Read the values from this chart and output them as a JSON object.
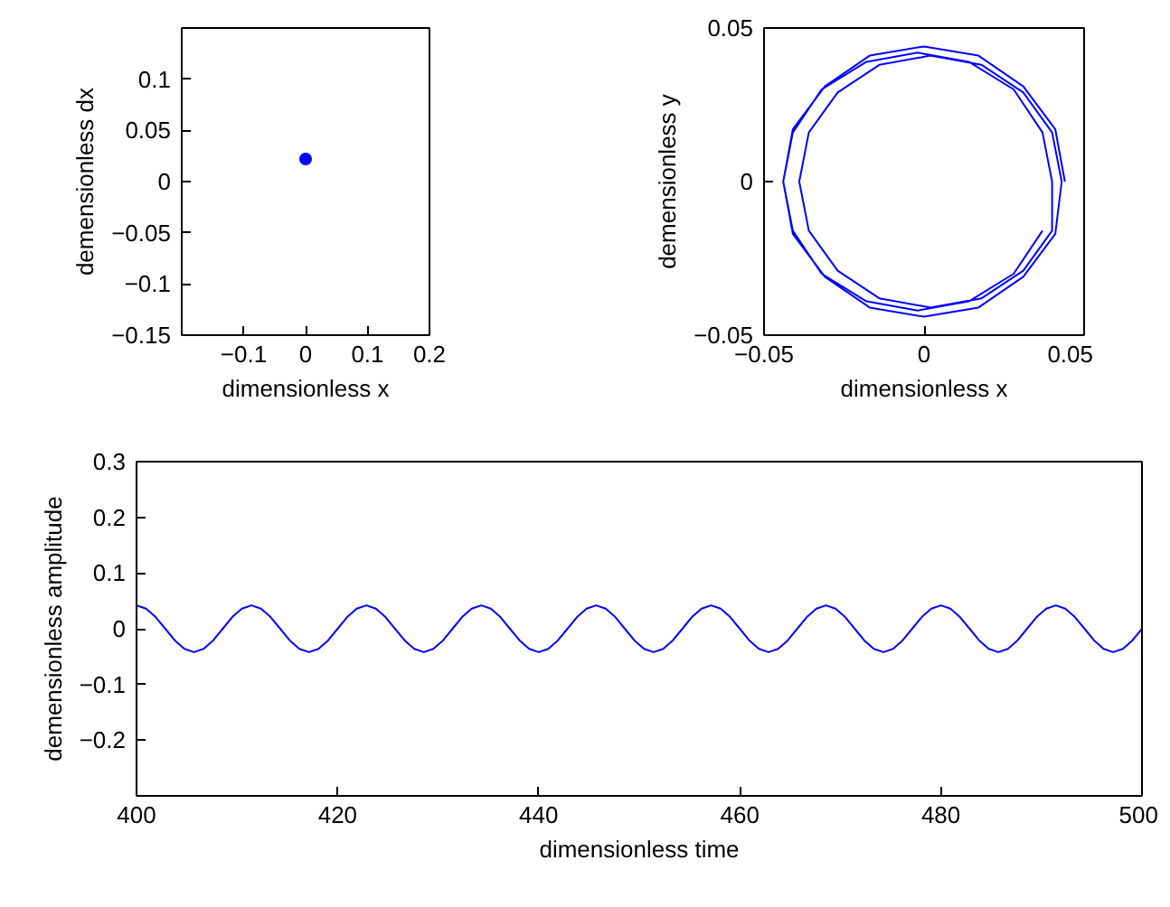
{
  "chart_data": [
    {
      "type": "scatter",
      "xlabel": "dimensionless x",
      "ylabel": "demensionless dx",
      "xlim": [
        -0.2,
        0.2
      ],
      "ylim": [
        -0.15,
        0.15
      ],
      "xticks": [
        -0.1,
        0,
        0.1,
        0.2
      ],
      "yticks": [
        -0.15,
        -0.1,
        -0.05,
        0,
        0.05,
        0.1
      ],
      "marker": "circle",
      "series": [
        {
          "color": "#0000ff",
          "x": [
            0
          ],
          "values": [
            0.022
          ]
        }
      ]
    },
    {
      "type": "line",
      "xlabel": "dimensionless x",
      "ylabel": "demensionless y",
      "xlim": [
        -0.05,
        0.05
      ],
      "ylim": [
        -0.05,
        0.05
      ],
      "xticks": [
        -0.05,
        0,
        0.05
      ],
      "yticks": [
        -0.05,
        0,
        0.05
      ],
      "series": [
        {
          "color": "#0000ff",
          "x": [
            0.044,
            0.041,
            0.031,
            0.017,
            0,
            -0.017,
            -0.031,
            -0.041,
            -0.044,
            -0.041,
            -0.031,
            -0.017,
            0,
            0.017,
            0.031,
            0.041,
            0.043,
            0.04,
            0.031,
            0.018,
            0.002,
            -0.014,
            -0.027,
            -0.036,
            -0.039,
            -0.036,
            -0.027,
            -0.014,
            0.002,
            0.018,
            0.031,
            0.04,
            0.04,
            0.037,
            0.028,
            0.014,
            -0.002,
            -0.018,
            -0.032,
            -0.041,
            -0.044,
            -0.041,
            -0.032,
            -0.018,
            -0.002,
            0.014,
            0.028,
            0.037
          ],
          "values": [
            0,
            0.017,
            0.031,
            0.041,
            0.044,
            0.041,
            0.031,
            0.017,
            0,
            -0.017,
            -0.031,
            -0.041,
            -0.044,
            -0.041,
            -0.031,
            -0.017,
            0,
            0.016,
            0.029,
            0.038,
            0.041,
            0.038,
            0.029,
            0.016,
            0,
            -0.016,
            -0.029,
            -0.038,
            -0.041,
            -0.038,
            -0.029,
            -0.016,
            0,
            0.016,
            0.03,
            0.039,
            0.042,
            0.039,
            0.03,
            0.016,
            0,
            -0.016,
            -0.03,
            -0.039,
            -0.042,
            -0.039,
            -0.03,
            -0.016
          ]
        }
      ]
    },
    {
      "type": "line",
      "xlabel": "dimensionless time",
      "ylabel": "demensionless amplitude",
      "xlim": [
        400,
        500
      ],
      "ylim": [
        -0.3,
        0.3
      ],
      "xticks": [
        400,
        420,
        440,
        460,
        480,
        500
      ],
      "yticks": [
        {
          "value": -0.3,
          "label": null
        },
        -0.2,
        -0.1,
        0,
        0.1,
        0.2,
        0.3
      ],
      "series": [
        {
          "color": "#0000ff",
          "x": [
            400,
            400.95,
            401.9,
            402.86,
            403.81,
            404.76,
            405.71,
            406.67,
            407.62,
            408.57,
            409.52,
            410.48,
            411.43,
            412.38,
            413.33,
            414.29,
            415.24,
            416.19,
            417.14,
            418.1,
            419.05,
            420,
            420.95,
            421.9,
            422.86,
            423.81,
            424.76,
            425.71,
            426.67,
            427.62,
            428.57,
            429.52,
            430.48,
            431.43,
            432.38,
            433.33,
            434.29,
            435.24,
            436.19,
            437.14,
            438.1,
            439.05,
            440,
            440.95,
            441.9,
            442.86,
            443.81,
            444.76,
            445.71,
            446.67,
            447.62,
            448.57,
            449.52,
            450.48,
            451.43,
            452.38,
            453.33,
            454.29,
            455.24,
            456.19,
            457.14,
            458.1,
            459.05,
            460,
            460.95,
            461.9,
            462.86,
            463.81,
            464.76,
            465.71,
            466.67,
            467.62,
            468.57,
            469.52,
            470.48,
            471.43,
            472.38,
            473.33,
            474.29,
            475.24,
            476.19,
            477.14,
            478.1,
            479.05,
            480,
            480.95,
            481.9,
            482.86,
            483.81,
            484.76,
            485.71,
            486.67,
            487.62,
            488.57,
            489.52,
            490.48,
            491.43,
            492.38,
            493.33,
            494.29,
            495.24,
            496.19,
            497.14,
            498.1,
            499.05,
            500
          ],
          "values": [
            0.042,
            0.036,
            0.021,
            0,
            -0.021,
            -0.036,
            -0.042,
            -0.036,
            -0.021,
            0,
            0.021,
            0.036,
            0.042,
            0.036,
            0.021,
            0,
            -0.021,
            -0.036,
            -0.042,
            -0.036,
            -0.021,
            0,
            0.021,
            0.036,
            0.042,
            0.036,
            0.021,
            0,
            -0.021,
            -0.036,
            -0.042,
            -0.036,
            -0.021,
            0,
            0.021,
            0.036,
            0.042,
            0.036,
            0.021,
            0,
            -0.021,
            -0.036,
            -0.042,
            -0.036,
            -0.021,
            0,
            0.021,
            0.036,
            0.042,
            0.036,
            0.021,
            0,
            -0.021,
            -0.036,
            -0.042,
            -0.036,
            -0.021,
            0,
            0.021,
            0.036,
            0.042,
            0.036,
            0.021,
            0,
            -0.021,
            -0.036,
            -0.042,
            -0.036,
            -0.021,
            0,
            0.021,
            0.036,
            0.042,
            0.036,
            0.021,
            0,
            -0.021,
            -0.036,
            -0.042,
            -0.036,
            -0.021,
            0,
            0.021,
            0.036,
            0.042,
            0.036,
            0.021,
            0,
            -0.021,
            -0.036,
            -0.042,
            -0.036,
            -0.021,
            0,
            0.021,
            0.036,
            0.042,
            0.036,
            0.021,
            0,
            -0.021,
            -0.036,
            -0.042,
            -0.036,
            -0.021,
            0
          ]
        }
      ]
    }
  ]
}
